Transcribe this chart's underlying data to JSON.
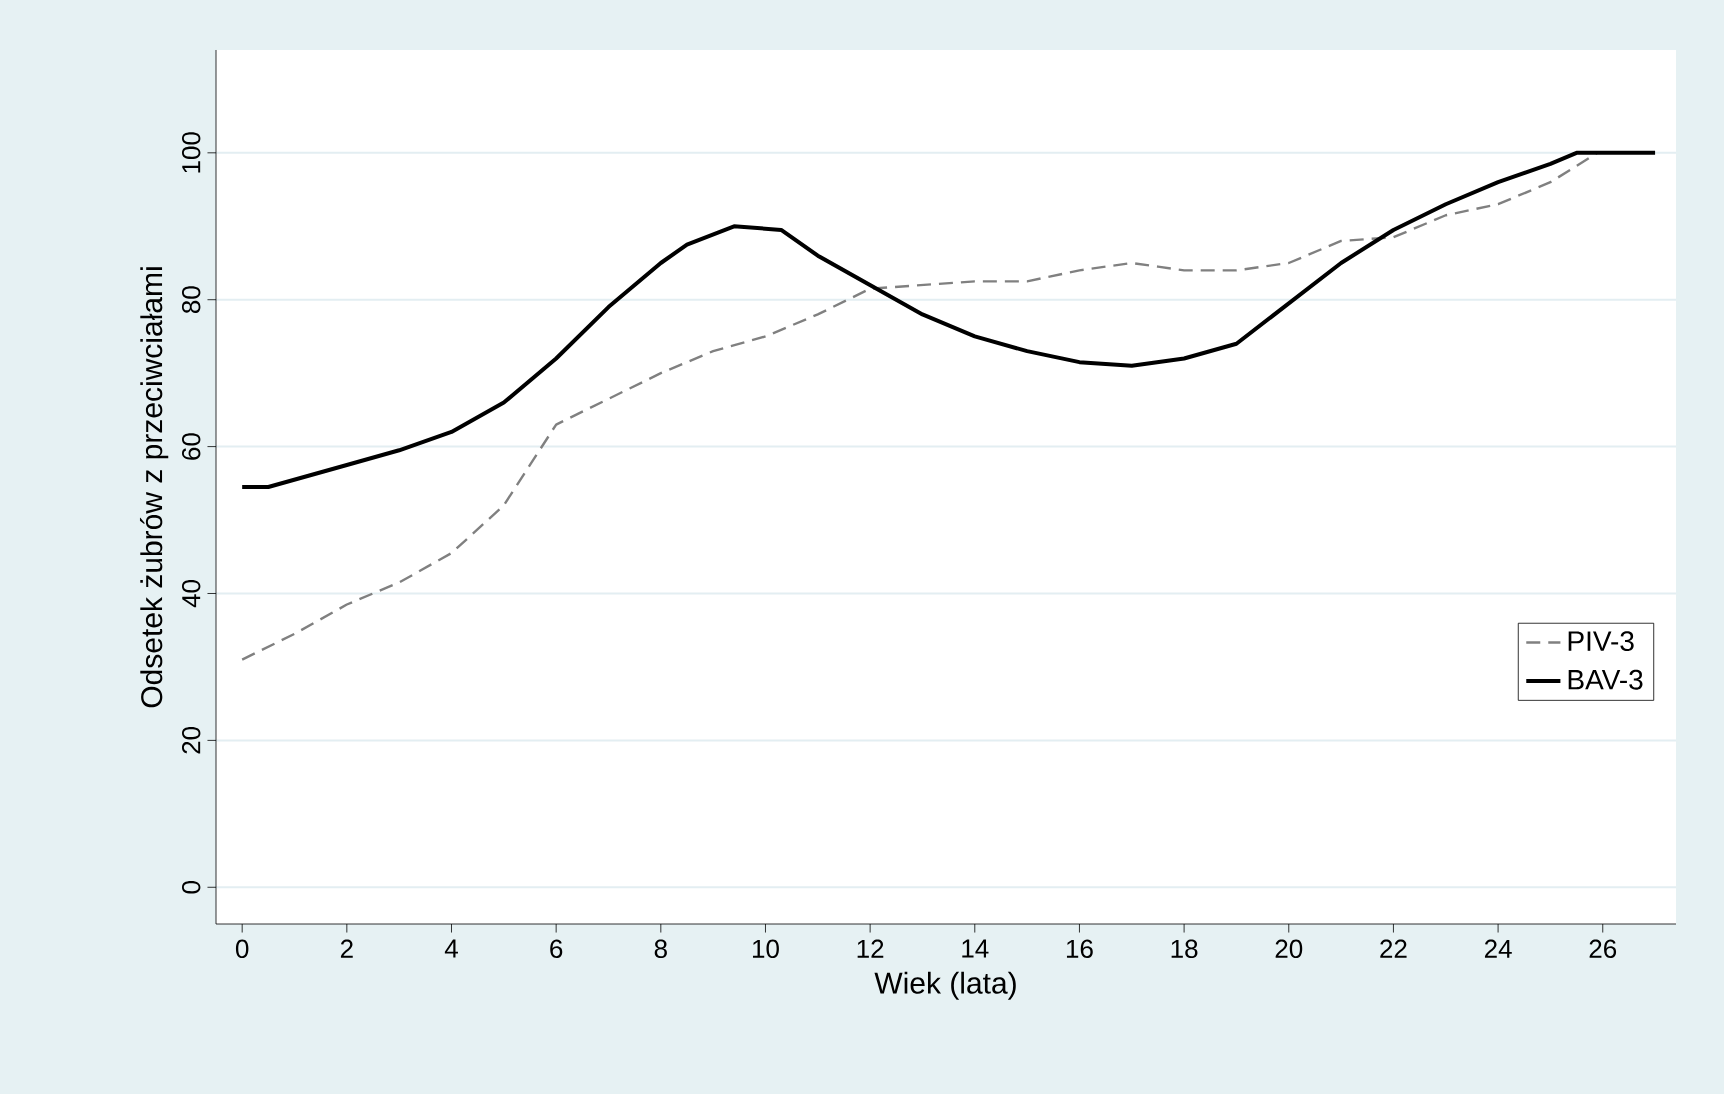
{
  "chart_data": {
    "type": "line",
    "xlabel": "Wiek (lata)",
    "ylabel": "Odsetek żubrów z przeciwciałami",
    "xlim": [
      -0.5,
      27.4
    ],
    "ylim": [
      -5,
      114
    ],
    "xticks": [
      0,
      2,
      4,
      6,
      8,
      10,
      12,
      14,
      16,
      18,
      20,
      22,
      24,
      26
    ],
    "yticks": [
      0,
      20,
      40,
      60,
      80,
      100
    ],
    "grid": "y",
    "legend": "right",
    "marker": "none",
    "series": [
      {
        "name": "PIV-3",
        "color": "#808080",
        "line_style": "dashed",
        "x": [
          0,
          1,
          2,
          3,
          4,
          5,
          6,
          7,
          8,
          9,
          10,
          11,
          12,
          13,
          14,
          15,
          16,
          17,
          17.5,
          18,
          19,
          20,
          21,
          22,
          23,
          24,
          25,
          25.9
        ],
        "values": [
          31,
          34.5,
          38.5,
          41.5,
          45.5,
          52,
          63,
          66.5,
          70,
          73,
          75,
          78,
          81.5,
          82,
          82.5,
          82.5,
          84,
          85,
          84.5,
          84,
          84,
          85,
          88,
          88.5,
          91.5,
          93,
          96,
          100
        ]
      },
      {
        "name": "BAV-3",
        "color": "#000000",
        "line_style": "solid",
        "x": [
          0,
          0.5,
          2,
          3,
          4,
          5,
          6,
          7,
          8,
          8.5,
          9.4,
          10.3,
          11,
          12,
          13,
          14,
          15,
          16,
          17,
          18,
          19,
          20,
          21,
          22,
          23,
          24,
          25,
          25.5,
          27
        ],
        "values": [
          54.5,
          54.5,
          57.5,
          59.5,
          62,
          66,
          72,
          79,
          85,
          87.5,
          90,
          89.5,
          86,
          82,
          78,
          75,
          73,
          71.5,
          71,
          72,
          74,
          79.5,
          85,
          89.5,
          93,
          96,
          98.5,
          100,
          100
        ]
      }
    ]
  }
}
